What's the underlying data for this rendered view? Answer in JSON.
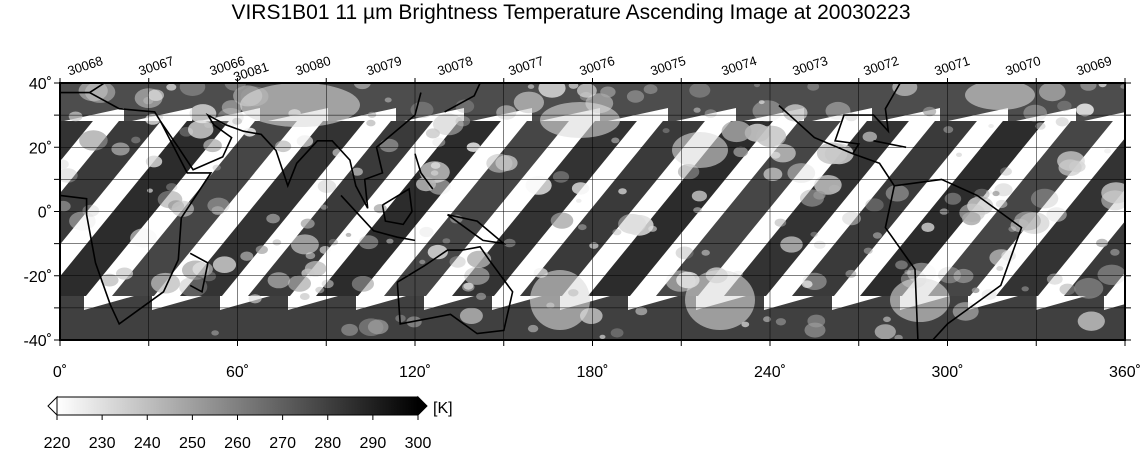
{
  "title": "VIRS1B01 11 µm Brightness Temperature Ascending Image at 20030223",
  "orbits": [
    {
      "label": "30068",
      "lon": 9
    },
    {
      "label": "30067",
      "lon": 33
    },
    {
      "label": "30066",
      "lon": 57
    },
    {
      "label": "30081",
      "lon": 65
    },
    {
      "label": "30080",
      "lon": 86
    },
    {
      "label": "30079",
      "lon": 110
    },
    {
      "label": "30078",
      "lon": 134
    },
    {
      "label": "30077",
      "lon": 158
    },
    {
      "label": "30076",
      "lon": 182
    },
    {
      "label": "30075",
      "lon": 206
    },
    {
      "label": "30074",
      "lon": 230
    },
    {
      "label": "30073",
      "lon": 254
    },
    {
      "label": "30072",
      "lon": 278
    },
    {
      "label": "30071",
      "lon": 302
    },
    {
      "label": "30070",
      "lon": 326
    },
    {
      "label": "30069",
      "lon": 350
    }
  ],
  "map": {
    "lon_range": [
      0,
      360
    ],
    "lat_range": [
      -40,
      40
    ],
    "x_ticks": [
      0,
      60,
      120,
      180,
      240,
      300,
      360
    ],
    "x_tick_labels": [
      "0˚",
      "60˚",
      "120˚",
      "180˚",
      "240˚",
      "300˚",
      "360˚"
    ],
    "y_ticks": [
      40,
      20,
      0,
      -20,
      -40
    ],
    "y_tick_labels": [
      "40˚",
      "20˚",
      "0˚",
      "-20˚",
      "-40˚"
    ],
    "grid_lon_step": 30,
    "grid_lat_step": 10,
    "grid": true
  },
  "colorbar": {
    "unit": "[K]",
    "min": 220,
    "max": 300,
    "tick_values": [
      220,
      230,
      240,
      250,
      260,
      270,
      280,
      290,
      300
    ],
    "tick_labels": [
      "220",
      "230",
      "240",
      "250",
      "260",
      "270",
      "280",
      "290",
      "300"
    ],
    "color_low": "#ffffff",
    "color_high": "#000000"
  },
  "colors": {
    "swath_dark": "#2a2a2a",
    "swath_mid": "#4a4a4a",
    "gap": "#ffffff",
    "grid": "#000000"
  }
}
